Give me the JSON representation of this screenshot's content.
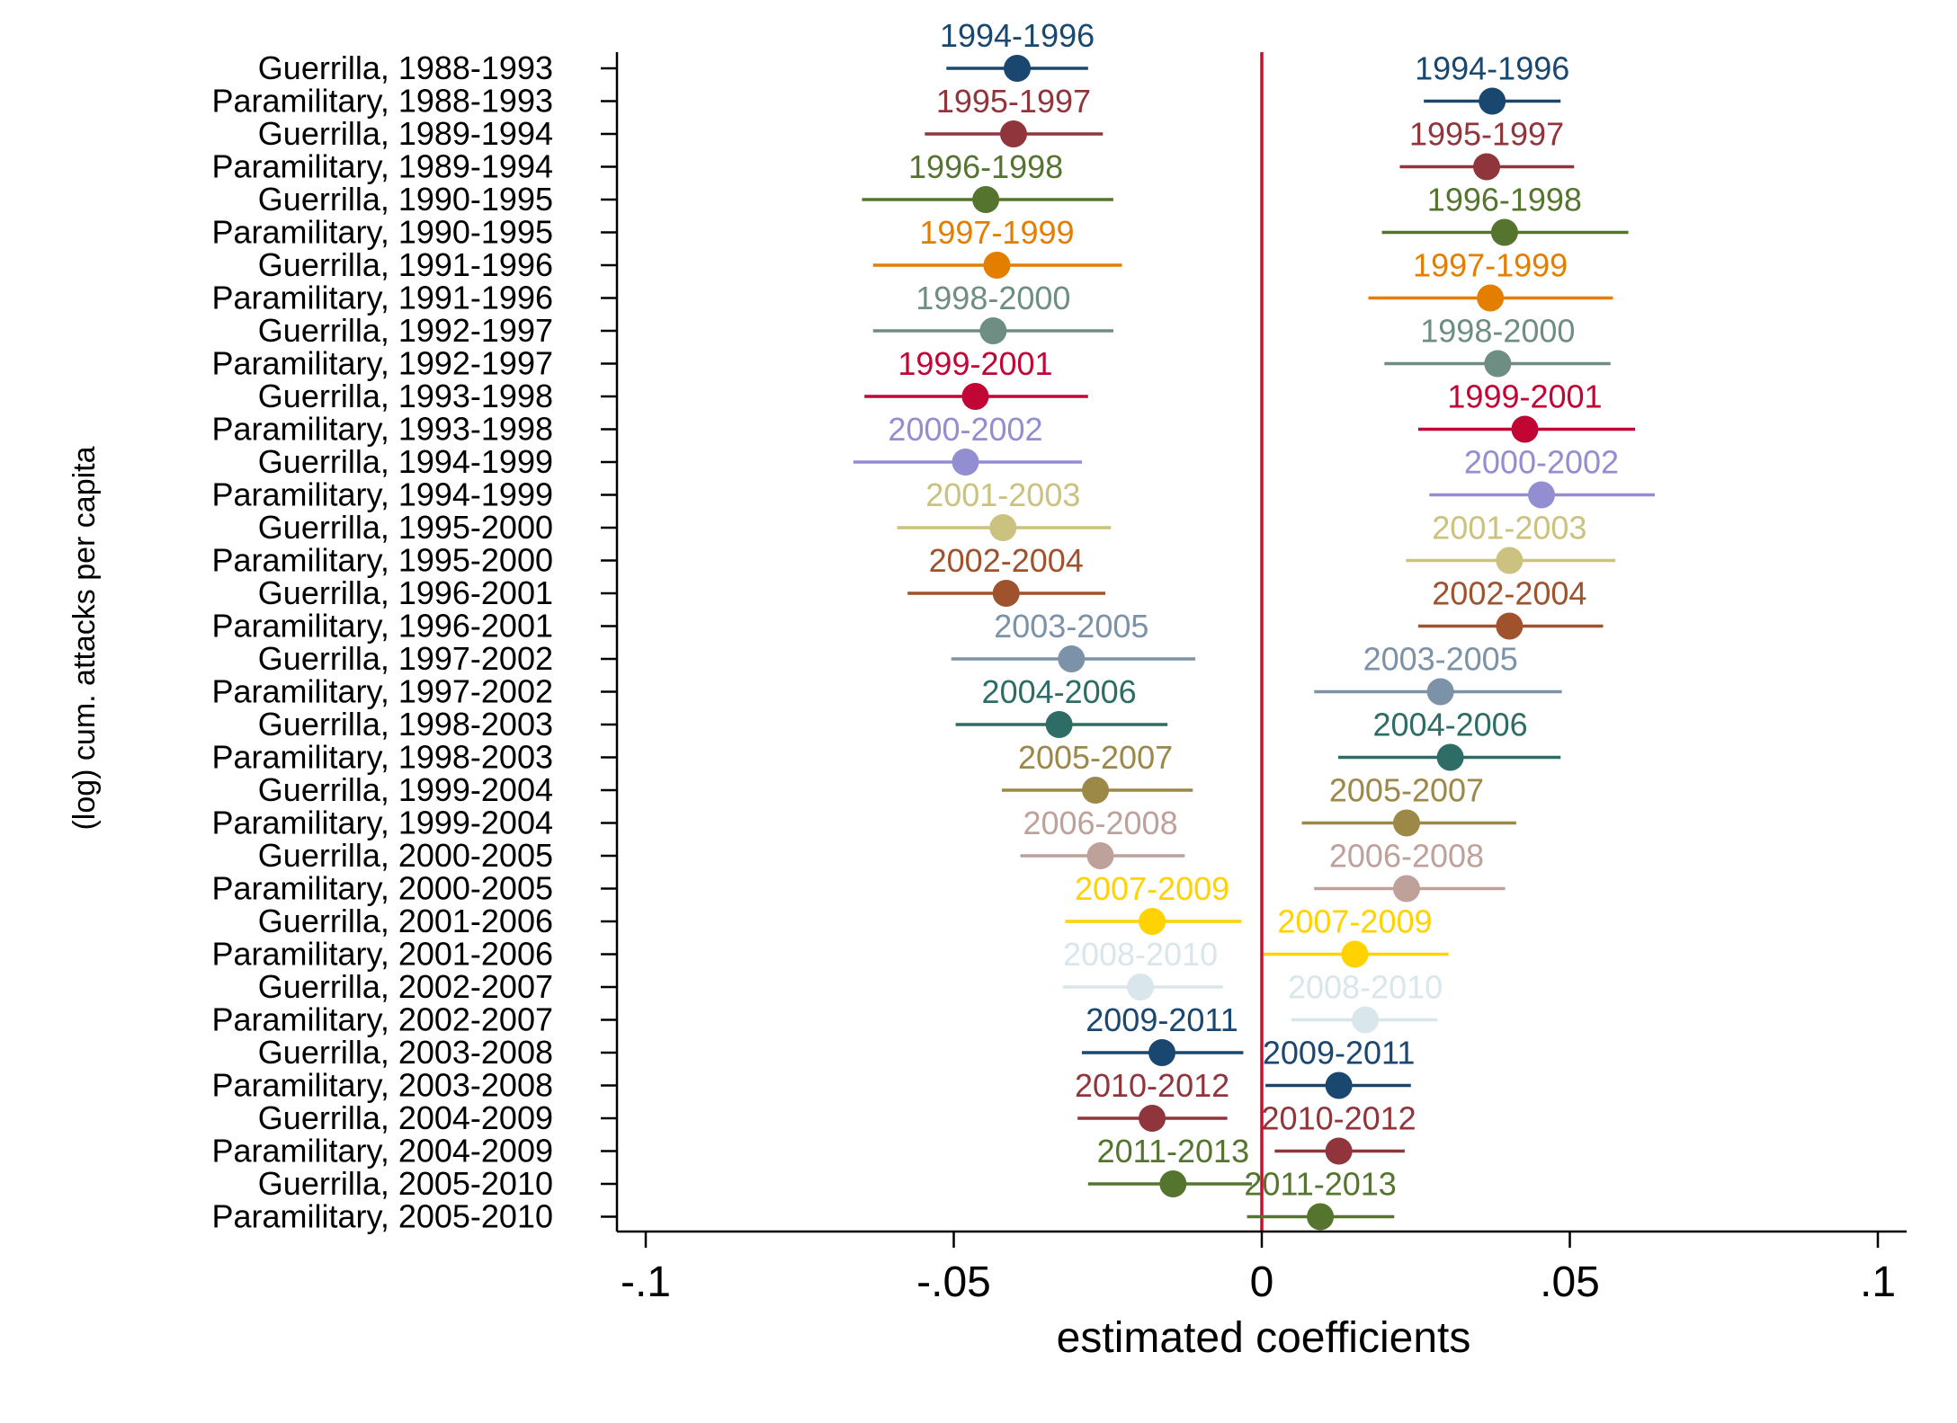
{
  "chart_data": {
    "type": "coefficient-plot",
    "xlabel": "estimated coefficients",
    "ylabel": "(log) cum. attacks per capita",
    "xlim": [
      -0.1,
      0.1
    ],
    "xticks": [
      {
        "value": -0.1,
        "label": "-.1"
      },
      {
        "value": -0.05,
        "label": "-.05"
      },
      {
        "value": 0,
        "label": "0"
      },
      {
        "value": 0.05,
        "label": ".05"
      },
      {
        "value": 0.1,
        "label": ".1"
      }
    ],
    "reference_line": {
      "x": 0,
      "color": "#c8102e"
    },
    "grid": false,
    "legend": "none",
    "rows": [
      "Guerrilla, 1988-1993",
      "Paramilitary, 1988-1993",
      "Guerrilla, 1989-1994",
      "Paramilitary, 1989-1994",
      "Guerrilla, 1990-1995",
      "Paramilitary, 1990-1995",
      "Guerrilla, 1991-1996",
      "Paramilitary, 1991-1996",
      "Guerrilla, 1992-1997",
      "Paramilitary, 1992-1997",
      "Guerrilla, 1993-1998",
      "Paramilitary, 1993-1998",
      "Guerrilla, 1994-1999",
      "Paramilitary, 1994-1999",
      "Guerrilla, 1995-2000",
      "Paramilitary, 1995-2000",
      "Guerrilla, 1996-2001",
      "Paramilitary, 1996-2001",
      "Guerrilla, 1997-2002",
      "Paramilitary, 1997-2002",
      "Guerrilla, 1998-2003",
      "Paramilitary, 1998-2003",
      "Guerrilla, 1999-2004",
      "Paramilitary, 1999-2004",
      "Guerrilla, 2000-2005",
      "Paramilitary, 2000-2005",
      "Guerrilla, 2001-2006",
      "Paramilitary, 2001-2006",
      "Guerrilla, 2002-2007",
      "Paramilitary, 2002-2007",
      "Guerrilla, 2003-2008",
      "Paramilitary, 2003-2008",
      "Guerrilla, 2004-2009",
      "Paramilitary, 2004-2009",
      "Guerrilla, 2005-2010",
      "Paramilitary, 2005-2010"
    ],
    "points": [
      {
        "label": "1994-1996",
        "color": "#1a476f",
        "row": "Guerrilla, 1988-1993",
        "est": -0.0397,
        "lo": -0.0512,
        "hi": -0.0282
      },
      {
        "label": "1994-1996",
        "color": "#1a476f",
        "row": "Paramilitary, 1988-1993",
        "est": 0.0374,
        "lo": 0.0263,
        "hi": 0.0485
      },
      {
        "label": "1995-1997",
        "color": "#90353b",
        "row": "Guerrilla, 1989-1994",
        "est": -0.0403,
        "lo": -0.0547,
        "hi": -0.0258
      },
      {
        "label": "1995-1997",
        "color": "#90353b",
        "row": "Paramilitary, 1989-1994",
        "est": 0.0365,
        "lo": 0.0224,
        "hi": 0.0507
      },
      {
        "label": "1996-1998",
        "color": "#55752f",
        "row": "Guerrilla, 1990-1995",
        "est": -0.0448,
        "lo": -0.0649,
        "hi": -0.0241
      },
      {
        "label": "1996-1998",
        "color": "#55752f",
        "row": "Paramilitary, 1990-1995",
        "est": 0.0394,
        "lo": 0.0195,
        "hi": 0.0595
      },
      {
        "label": "1997-1999",
        "color": "#e37e00",
        "row": "Guerrilla, 1991-1996",
        "est": -0.043,
        "lo": -0.0631,
        "hi": -0.0227
      },
      {
        "label": "1997-1999",
        "color": "#e37e00",
        "row": "Paramilitary, 1991-1996",
        "est": 0.0371,
        "lo": 0.0173,
        "hi": 0.057
      },
      {
        "label": "1998-2000",
        "color": "#6e8e84",
        "row": "Guerrilla, 1992-1997",
        "est": -0.0436,
        "lo": -0.0631,
        "hi": -0.0241
      },
      {
        "label": "1998-2000",
        "color": "#6e8e84",
        "row": "Paramilitary, 1992-1997",
        "est": 0.0383,
        "lo": 0.0199,
        "hi": 0.0566
      },
      {
        "label": "1999-2001",
        "color": "#c10534",
        "row": "Guerrilla, 1993-1998",
        "est": -0.0465,
        "lo": -0.0645,
        "hi": -0.0282
      },
      {
        "label": "1999-2001",
        "color": "#c10534",
        "row": "Paramilitary, 1993-1998",
        "est": 0.0427,
        "lo": 0.0254,
        "hi": 0.0606
      },
      {
        "label": "2000-2002",
        "color": "#938dd2",
        "row": "Guerrilla, 1994-1999",
        "est": -0.0481,
        "lo": -0.0663,
        "hi": -0.0292
      },
      {
        "label": "2000-2002",
        "color": "#938dd2",
        "row": "Paramilitary, 1994-1999",
        "est": 0.0454,
        "lo": 0.0272,
        "hi": 0.0638
      },
      {
        "label": "2001-2003",
        "color": "#cac27e",
        "row": "Guerrilla, 1995-2000",
        "est": -0.042,
        "lo": -0.0592,
        "hi": -0.0245
      },
      {
        "label": "2001-2003",
        "color": "#cac27e",
        "row": "Paramilitary, 1995-2000",
        "est": 0.0402,
        "lo": 0.0234,
        "hi": 0.0574
      },
      {
        "label": "2002-2004",
        "color": "#a0522d",
        "row": "Guerrilla, 1996-2001",
        "est": -0.0415,
        "lo": -0.0575,
        "hi": -0.0254
      },
      {
        "label": "2002-2004",
        "color": "#a0522d",
        "row": "Paramilitary, 1996-2001",
        "est": 0.0402,
        "lo": 0.0254,
        "hi": 0.0554
      },
      {
        "label": "2003-2005",
        "color": "#7b92a8",
        "row": "Guerrilla, 1997-2002",
        "est": -0.0309,
        "lo": -0.0504,
        "hi": -0.0108
      },
      {
        "label": "2003-2005",
        "color": "#7b92a8",
        "row": "Paramilitary, 1997-2002",
        "est": 0.029,
        "lo": 0.0085,
        "hi": 0.0487
      },
      {
        "label": "2004-2006",
        "color": "#2d6d66",
        "row": "Guerrilla, 1998-2003",
        "est": -0.0329,
        "lo": -0.0497,
        "hi": -0.0153
      },
      {
        "label": "2004-2006",
        "color": "#2d6d66",
        "row": "Paramilitary, 1998-2003",
        "est": 0.0306,
        "lo": 0.0124,
        "hi": 0.0485
      },
      {
        "label": "2005-2007",
        "color": "#9c8847",
        "row": "Guerrilla, 1999-2004",
        "est": -0.027,
        "lo": -0.0422,
        "hi": -0.0112
      },
      {
        "label": "2005-2007",
        "color": "#9c8847",
        "row": "Paramilitary, 1999-2004",
        "est": 0.0235,
        "lo": 0.0065,
        "hi": 0.0413
      },
      {
        "label": "2006-2008",
        "color": "#bfa19c",
        "row": "Guerrilla, 2000-2005",
        "est": -0.0262,
        "lo": -0.0392,
        "hi": -0.0125
      },
      {
        "label": "2006-2008",
        "color": "#bfa19c",
        "row": "Paramilitary, 2000-2005",
        "est": 0.0235,
        "lo": 0.0085,
        "hi": 0.0395
      },
      {
        "label": "2007-2009",
        "color": "#ffd200",
        "row": "Guerrilla, 2001-2006",
        "est": -0.0178,
        "lo": -0.0319,
        "hi": -0.0033
      },
      {
        "label": "2007-2009",
        "color": "#ffd200",
        "row": "Paramilitary, 2001-2006",
        "est": 0.0151,
        "lo": 0.0003,
        "hi": 0.0303
      },
      {
        "label": "2008-2010",
        "color": "#d9e6eb",
        "row": "Guerrilla, 2002-2007",
        "est": -0.0197,
        "lo": -0.0323,
        "hi": -0.0063
      },
      {
        "label": "2008-2010",
        "color": "#d9e6eb",
        "row": "Paramilitary, 2002-2007",
        "est": 0.0168,
        "lo": 0.0048,
        "hi": 0.0285
      },
      {
        "label": "2009-2011",
        "color": "#1a476f",
        "row": "Guerrilla, 2003-2008",
        "est": -0.0162,
        "lo": -0.0292,
        "hi": -0.003
      },
      {
        "label": "2009-2011",
        "color": "#1a476f",
        "row": "Paramilitary, 2003-2008",
        "est": 0.0125,
        "lo": 0.0006,
        "hi": 0.0242
      },
      {
        "label": "2010-2012",
        "color": "#90353b",
        "row": "Guerrilla, 2004-2009",
        "est": -0.0178,
        "lo": -0.0299,
        "hi": -0.0056
      },
      {
        "label": "2010-2012",
        "color": "#90353b",
        "row": "Paramilitary, 2004-2009",
        "est": 0.0125,
        "lo": 0.0021,
        "hi": 0.0232
      },
      {
        "label": "2011-2013",
        "color": "#55752f",
        "row": "Guerrilla, 2005-2010",
        "est": -0.0144,
        "lo": -0.0282,
        "hi": -0.0016
      },
      {
        "label": "2011-2013",
        "color": "#55752f",
        "row": "Paramilitary, 2005-2010",
        "est": 0.0095,
        "lo": -0.0024,
        "hi": 0.0215
      }
    ]
  }
}
